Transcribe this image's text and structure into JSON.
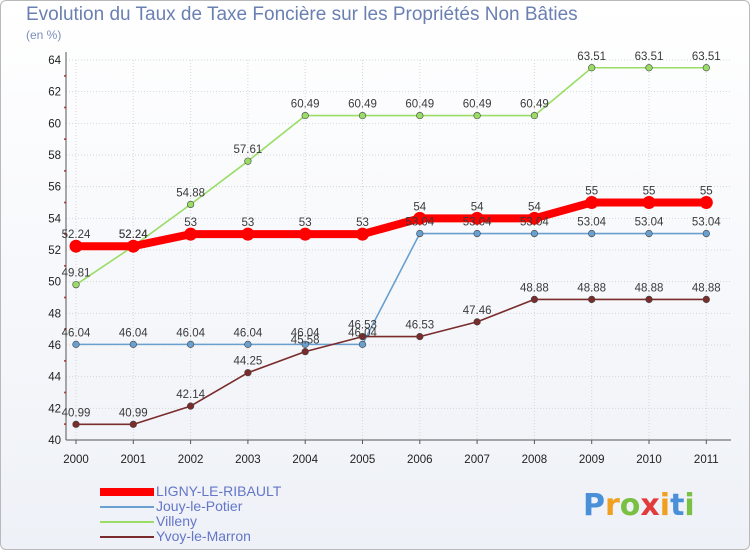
{
  "header": {
    "title": "Evolution du Taux de Taxe Foncière sur les Propriétés Non Bâties",
    "unit": "(en %)"
  },
  "logo": {
    "text": "Proxiti",
    "colors": [
      "#4a90d9",
      "#f0a020",
      "#7ac043",
      "#e23b3b",
      "#f0a020",
      "#4a90d9",
      "#7ac043"
    ]
  },
  "chart_data": {
    "type": "line",
    "title": "Evolution du Taux de Taxe Foncière sur les Propriétés Non Bâties",
    "ylabel": "(en %)",
    "xlabel": "",
    "x": [
      "2000",
      "2001",
      "2002",
      "2003",
      "2004",
      "2005",
      "2006",
      "2007",
      "2008",
      "2009",
      "2010",
      "2011"
    ],
    "ylim": [
      40,
      64
    ],
    "yticks": [
      40,
      42,
      44,
      46,
      48,
      50,
      52,
      54,
      56,
      58,
      60,
      62,
      64
    ],
    "grid": true,
    "legend_position": "bottom-left",
    "series": [
      {
        "name": "LIGNY-LE-RIBAULT",
        "color": "#ff0000",
        "values": [
          52.24,
          52.24,
          53,
          53,
          53,
          53,
          54,
          54,
          54,
          55,
          55,
          55
        ],
        "labels": [
          "52.24",
          "52.24",
          "53",
          "53",
          "53",
          "53",
          "54",
          "54",
          "54",
          "55",
          "55",
          "55"
        ]
      },
      {
        "name": "Jouy-le-Potier",
        "color": "#6aa0d0",
        "values": [
          46.04,
          46.04,
          46.04,
          46.04,
          46.04,
          46.04,
          53.04,
          53.04,
          53.04,
          53.04,
          53.04,
          53.04
        ],
        "labels": [
          "46.04",
          "46.04",
          "46.04",
          "46.04",
          "46.04",
          "46.04",
          "53.04",
          "53.04",
          "53.04",
          "53.04",
          "53.04",
          "53.04"
        ]
      },
      {
        "name": "Villeny",
        "color": "#99dd66",
        "values": [
          49.81,
          52.24,
          54.88,
          57.61,
          60.49,
          60.49,
          60.49,
          60.49,
          60.49,
          63.51,
          63.51,
          63.51
        ],
        "labels": [
          "49.81",
          "52.24",
          "54.88",
          "57.61",
          "60.49",
          "60.49",
          "60.49",
          "60.49",
          "60.49",
          "63.51",
          "63.51",
          "63.51"
        ]
      },
      {
        "name": "Yvoy-le-Marron",
        "color": "#7a2b2b",
        "values": [
          40.99,
          40.99,
          42.14,
          44.25,
          45.58,
          46.53,
          46.53,
          47.46,
          48.88,
          48.88,
          48.88,
          48.88
        ],
        "labels": [
          "40.99",
          "40.99",
          "42.14",
          "44.25",
          "45.58",
          "46.53",
          "46.53",
          "47.46",
          "48.88",
          "48.88",
          "48.88",
          "48.88"
        ]
      }
    ]
  }
}
